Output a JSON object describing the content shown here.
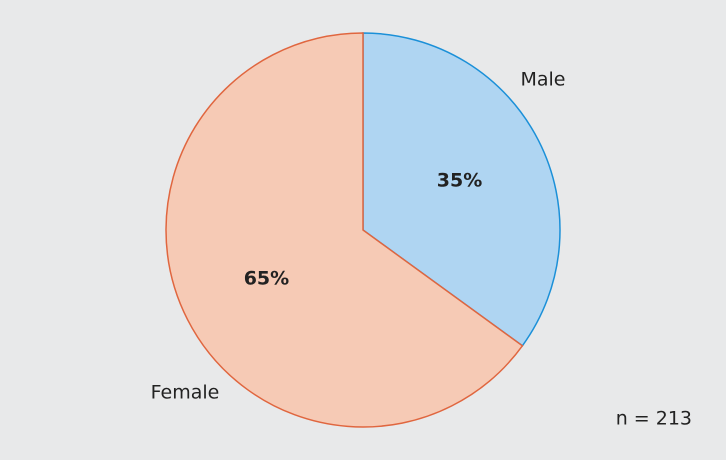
{
  "chart_data": {
    "type": "pie",
    "categories": [
      "Male",
      "Female"
    ],
    "values": [
      35,
      65
    ],
    "value_labels": [
      "35%",
      "65%"
    ],
    "colors": [
      "#afd5f2",
      "#f6cab5"
    ],
    "edgecolors": [
      "#1b90d8",
      "#e0663f"
    ],
    "annotation": "n = 213"
  }
}
